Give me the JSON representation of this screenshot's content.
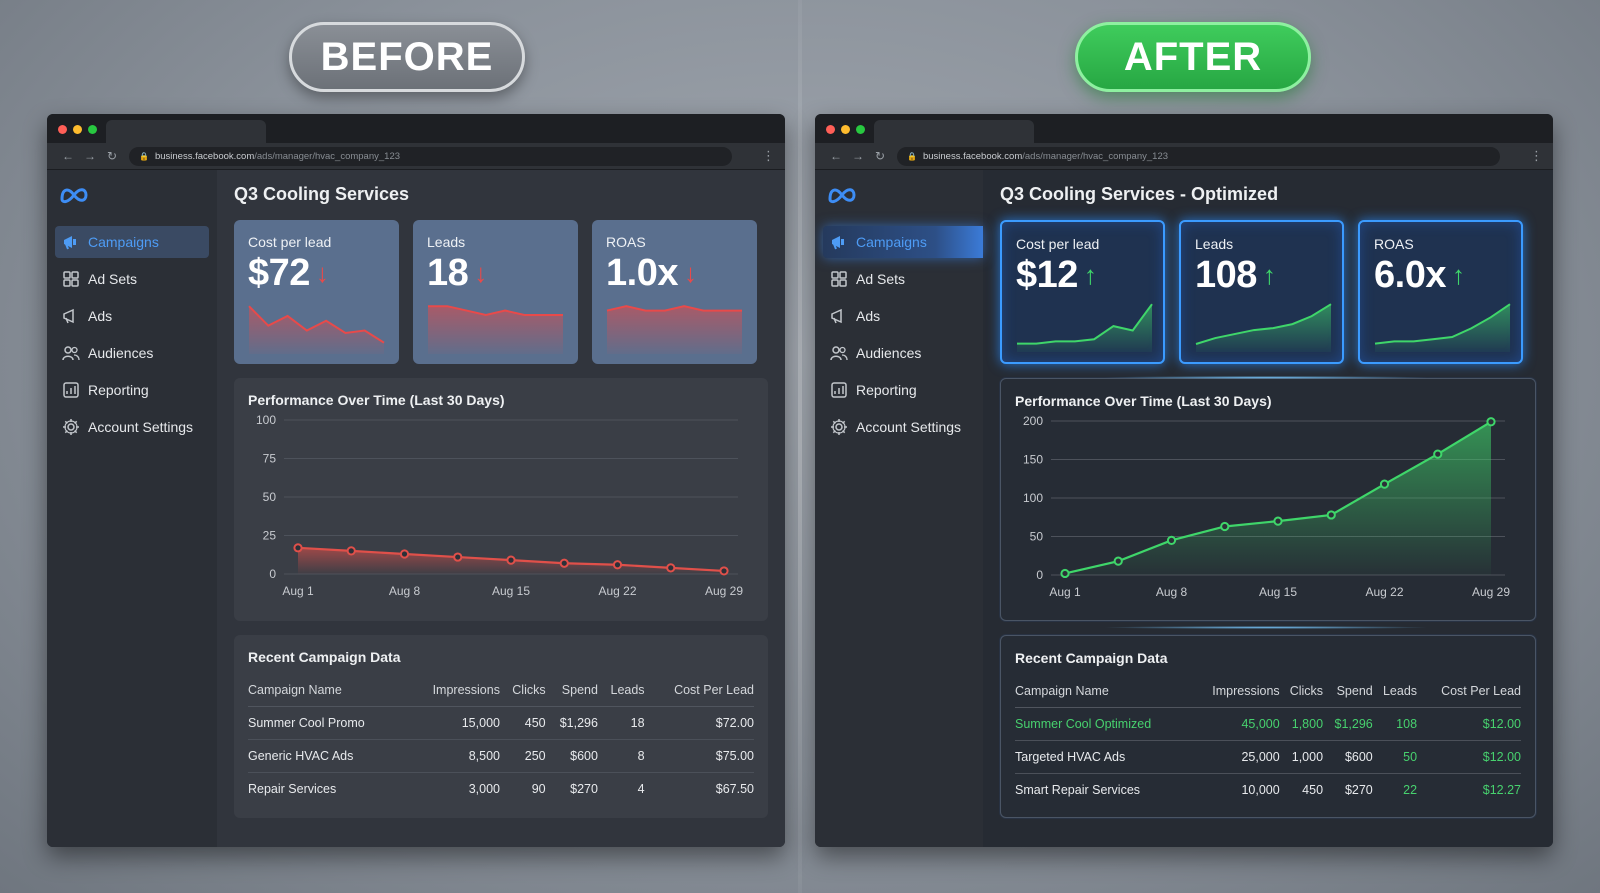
{
  "labels": {
    "before": "BEFORE",
    "after": "AFTER"
  },
  "browser": {
    "url_host": "business.facebook.com",
    "url_path": "/ads/manager/hvac_company_123"
  },
  "nav": [
    {
      "label": "Campaigns",
      "icon": "megaphone-icon",
      "active": true
    },
    {
      "label": "Ad Sets",
      "icon": "grid-icon",
      "active": false
    },
    {
      "label": "Ads",
      "icon": "megaphone-outline-icon",
      "active": false
    },
    {
      "label": "Audiences",
      "icon": "people-icon",
      "active": false
    },
    {
      "label": "Reporting",
      "icon": "report-chart-icon",
      "active": false
    },
    {
      "label": "Account Settings",
      "icon": "gear-icon",
      "active": false
    }
  ],
  "before": {
    "title": "Q3 Cooling Services",
    "kpis": [
      {
        "label": "Cost per lead",
        "value": "$72",
        "trend": "down",
        "spark": [
          18,
          10,
          14,
          8,
          12,
          7,
          8,
          3
        ]
      },
      {
        "label": "Leads",
        "value": "18",
        "trend": "down",
        "spark": [
          10,
          10,
          9,
          8,
          9,
          8,
          8,
          8
        ]
      },
      {
        "label": "ROAS",
        "value": "1.0x",
        "trend": "down",
        "spark": [
          9,
          10,
          9,
          9,
          10,
          9,
          9,
          9
        ]
      }
    ],
    "chart_title": "Performance Over Time (Last 30 Days)",
    "table_title": "Recent Campaign Data",
    "table_headers": [
      "Campaign Name",
      "Impressions",
      "Clicks",
      "Spend",
      "Leads",
      "Cost Per Lead"
    ],
    "rows": [
      [
        "Summer Cool Promo",
        "15,000",
        "450",
        "$1,296",
        "18",
        "$72.00"
      ],
      [
        "Generic HVAC Ads",
        "8,500",
        "250",
        "$600",
        "8",
        "$75.00"
      ],
      [
        "Repair Services",
        "3,000",
        "90",
        "$270",
        "4",
        "$67.50"
      ]
    ]
  },
  "after": {
    "title": "Q3 Cooling Services - Optimized",
    "kpis": [
      {
        "label": "Cost per lead",
        "value": "$12",
        "trend": "up",
        "spark": [
          2,
          2,
          3,
          3,
          4,
          10,
          8,
          20
        ]
      },
      {
        "label": "Leads",
        "value": "108",
        "trend": "up",
        "spark": [
          2,
          5,
          7,
          9,
          10,
          12,
          16,
          22
        ]
      },
      {
        "label": "ROAS",
        "value": "6.0x",
        "trend": "up",
        "spark": [
          2,
          3,
          3,
          4,
          5,
          9,
          14,
          20
        ]
      }
    ],
    "chart_title": "Performance Over Time (Last 30 Days)",
    "table_title": "Recent Campaign Data",
    "table_headers": [
      "Campaign Name",
      "Impressions",
      "Clicks",
      "Spend",
      "Leads",
      "Cost Per Lead"
    ],
    "rows": [
      [
        "Summer Cool Optimized",
        "45,000",
        "1,800",
        "$1,296",
        "108",
        "$12.00"
      ],
      [
        "Targeted HVAC Ads",
        "25,000",
        "1,000",
        "$600",
        "50",
        "$12.00"
      ],
      [
        "Smart Repair Services",
        "10,000",
        "450",
        "$270",
        "22",
        "$12.27"
      ]
    ]
  },
  "chart_data": [
    {
      "type": "line",
      "title": "Performance Over Time (Last 30 Days)",
      "x": [
        "Aug 1",
        "Aug 4",
        "Aug 8",
        "Aug 11",
        "Aug 15",
        "Aug 18",
        "Aug 22",
        "Aug 25",
        "Aug 29"
      ],
      "xticks": [
        "Aug 1",
        "Aug 8",
        "Aug 15",
        "Aug 22",
        "Aug 29"
      ],
      "yticks": [
        0,
        25,
        50,
        75,
        100
      ],
      "ylim": [
        0,
        100
      ],
      "series": [
        {
          "values": [
            17,
            15,
            13,
            11,
            9,
            7,
            6,
            4,
            2
          ]
        }
      ],
      "color": "#e0504a",
      "grid": true
    },
    {
      "type": "line",
      "title": "Performance Over Time (Last 30 Days)",
      "x": [
        "Aug 1",
        "Aug 4",
        "Aug 8",
        "Aug 11",
        "Aug 15",
        "Aug 18",
        "Aug 22",
        "Aug 25",
        "Aug 29"
      ],
      "xticks": [
        "Aug 1",
        "Aug 8",
        "Aug 15",
        "Aug 22",
        "Aug 29"
      ],
      "yticks": [
        0,
        50,
        100,
        150,
        200
      ],
      "ylim": [
        0,
        200
      ],
      "series": [
        {
          "values": [
            2,
            18,
            45,
            63,
            70,
            78,
            118,
            157,
            199
          ]
        }
      ],
      "color": "#3fd66a",
      "grid": true
    }
  ],
  "colors": {
    "down": "#e84a4a",
    "up": "#3fd66a",
    "accent_blue": "#4e9cf5"
  }
}
